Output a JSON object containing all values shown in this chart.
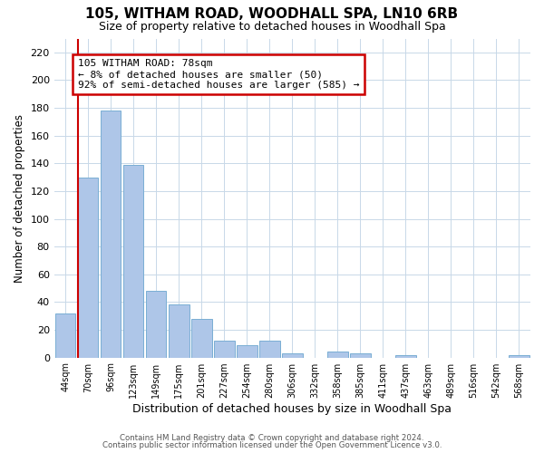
{
  "title": "105, WITHAM ROAD, WOODHALL SPA, LN10 6RB",
  "subtitle": "Size of property relative to detached houses in Woodhall Spa",
  "xlabel": "Distribution of detached houses by size in Woodhall Spa",
  "ylabel": "Number of detached properties",
  "bar_labels": [
    "44sqm",
    "70sqm",
    "96sqm",
    "123sqm",
    "149sqm",
    "175sqm",
    "201sqm",
    "227sqm",
    "254sqm",
    "280sqm",
    "306sqm",
    "332sqm",
    "358sqm",
    "385sqm",
    "411sqm",
    "437sqm",
    "463sqm",
    "489sqm",
    "516sqm",
    "542sqm",
    "568sqm"
  ],
  "bar_values": [
    32,
    130,
    178,
    139,
    48,
    38,
    28,
    12,
    9,
    12,
    3,
    0,
    4,
    3,
    0,
    2,
    0,
    0,
    0,
    0,
    2
  ],
  "bar_color": "#aec6e8",
  "bar_edge_color": "#7aaed4",
  "marker_bar_index": 1,
  "marker_color": "#cc0000",
  "ylim": [
    0,
    230
  ],
  "yticks": [
    0,
    20,
    40,
    60,
    80,
    100,
    120,
    140,
    160,
    180,
    200,
    220
  ],
  "annotation_line1": "105 WITHAM ROAD: 78sqm",
  "annotation_line2": "← 8% of detached houses are smaller (50)",
  "annotation_line3": "92% of semi-detached houses are larger (585) →",
  "annotation_box_color": "#ffffff",
  "annotation_box_edge": "#cc0000",
  "footer_line1": "Contains HM Land Registry data © Crown copyright and database right 2024.",
  "footer_line2": "Contains public sector information licensed under the Open Government Licence v3.0.",
  "background_color": "#ffffff",
  "grid_color": "#c8d8e8",
  "title_fontsize": 11,
  "subtitle_fontsize": 9,
  "ylabel_fontsize": 8.5,
  "xlabel_fontsize": 9
}
